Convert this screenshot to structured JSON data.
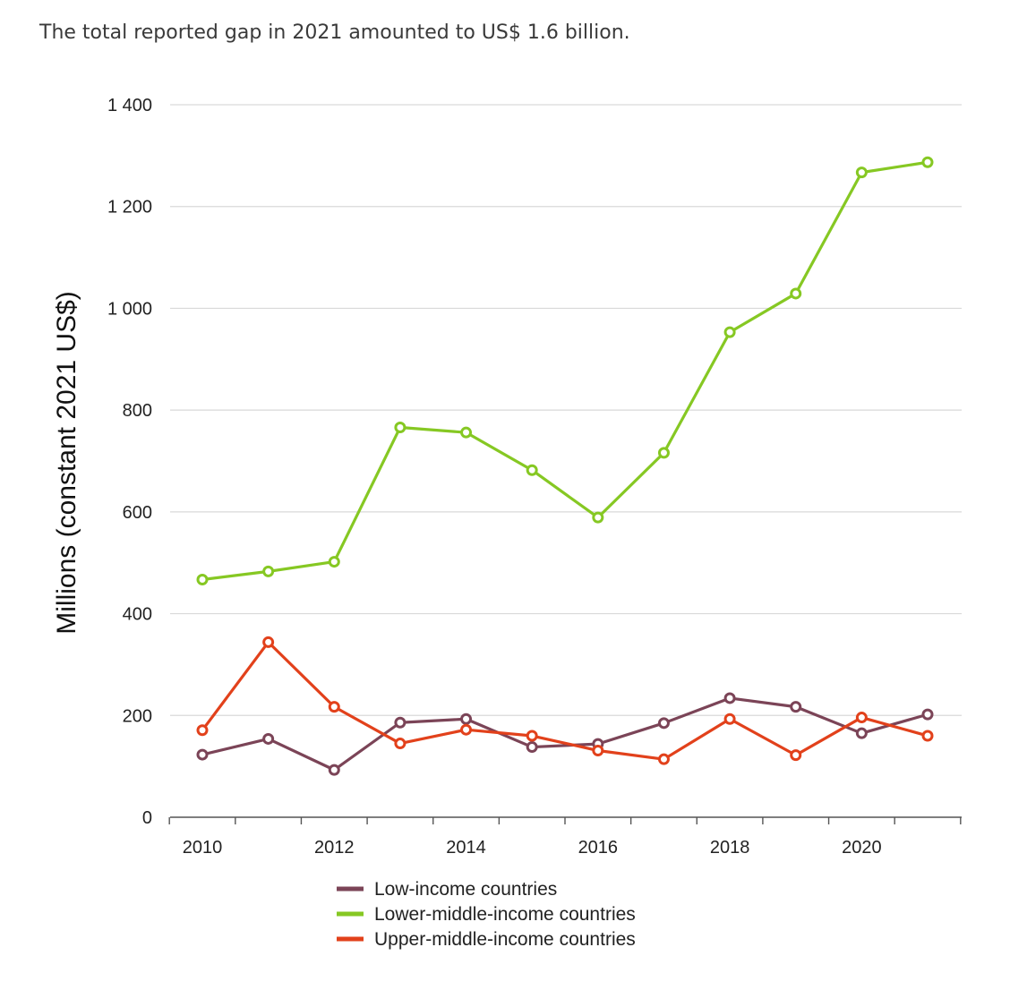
{
  "subtitle": "The total reported gap in 2021 amounted to US$ 1.6 billion.",
  "chart_data": {
    "type": "line",
    "title": "",
    "xlabel": "",
    "ylabel": "Millions (constant 2021 US$)",
    "x": [
      2010,
      2011,
      2012,
      2013,
      2014,
      2015,
      2016,
      2017,
      2018,
      2019,
      2020,
      2021
    ],
    "xticks": [
      "2010",
      "2012",
      "2014",
      "2016",
      "2018",
      "2020"
    ],
    "yticks": [
      "0",
      "200",
      "400",
      "600",
      "800",
      "1 000",
      "1 200",
      "1 400"
    ],
    "ylim": [
      0,
      1400
    ],
    "grid": true,
    "legend_position": "bottom",
    "series": [
      {
        "name": "Low-income countries",
        "color": "#7b4457",
        "values": [
          123,
          154,
          93,
          186,
          193,
          138,
          144,
          185,
          234,
          217,
          165,
          202
        ]
      },
      {
        "name": "Lower-middle-income countries",
        "color": "#86c823",
        "values": [
          467,
          483,
          502,
          766,
          756,
          682,
          589,
          716,
          953,
          1029,
          1267,
          1287
        ]
      },
      {
        "name": "Upper-middle-income countries",
        "color": "#e2411b",
        "values": [
          171,
          344,
          217,
          145,
          172,
          160,
          131,
          114,
          193,
          122,
          196,
          160
        ]
      }
    ]
  }
}
